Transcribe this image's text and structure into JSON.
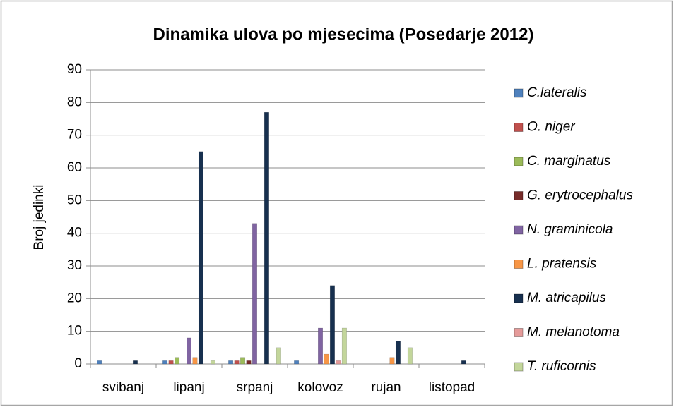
{
  "chart_data": {
    "type": "bar",
    "title": "Dinamika ulova po mjesecima (Posedarje 2012)",
    "y_label": "Broj jedinki",
    "categories": [
      "svibanj",
      "lipanj",
      "srpanj",
      "kolovoz",
      "rujan",
      "listopad"
    ],
    "series": [
      {
        "name": "C.lateralis",
        "color": "#4f81bd",
        "values": [
          1,
          1,
          1,
          1,
          0,
          0
        ]
      },
      {
        "name": "O. niger",
        "color": "#c0504d",
        "values": [
          0,
          1,
          1,
          0,
          0,
          0
        ]
      },
      {
        "name": "C. marginatus",
        "color": "#9bbb59",
        "values": [
          0,
          2,
          2,
          0,
          0,
          0
        ]
      },
      {
        "name": "G. erytrocephalus",
        "color": "#772c2a",
        "values": [
          0,
          0,
          1,
          0,
          0,
          0
        ]
      },
      {
        "name": "N. graminicola",
        "color": "#8064a2",
        "values": [
          0,
          8,
          43,
          11,
          0,
          0
        ]
      },
      {
        "name": "L. pratensis",
        "color": "#f79646",
        "values": [
          0,
          2,
          0,
          3,
          2,
          0
        ]
      },
      {
        "name": "M. atricapilus",
        "color": "#17304f",
        "values": [
          1,
          65,
          77,
          24,
          7,
          1
        ]
      },
      {
        "name": "M. melanotoma",
        "color": "#e59b9a",
        "values": [
          0,
          0,
          0,
          1,
          0,
          0
        ]
      },
      {
        "name": "T. ruficornis",
        "color": "#c3d69b",
        "values": [
          0,
          1,
          5,
          11,
          5,
          0
        ]
      }
    ],
    "ylim": [
      0,
      90
    ],
    "yticks": [
      0,
      10,
      20,
      30,
      40,
      50,
      60,
      70,
      80,
      90
    ],
    "grid": true,
    "legend": "right"
  }
}
